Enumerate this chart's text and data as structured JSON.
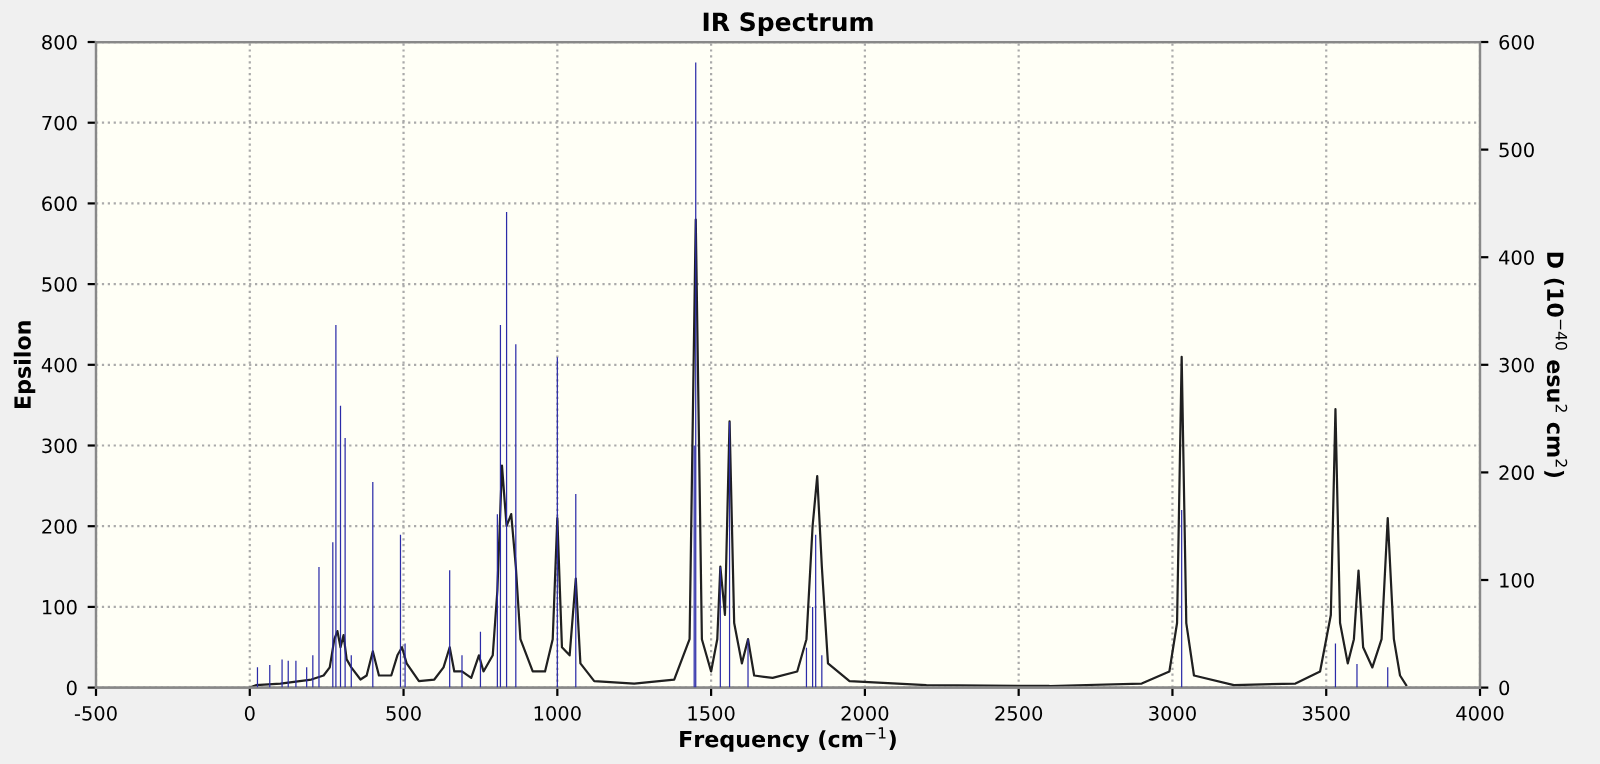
{
  "chart_data": {
    "type": "line",
    "title": "IR Spectrum",
    "xlabel": "Frequency (cm$^{−1}$)",
    "ylabel": "Epsilon",
    "y2label": "D (10$^{−40}$ esu$^{2}$ cm$^{2}$)",
    "xlim": [
      -500,
      4000
    ],
    "xticks": [
      -500,
      0,
      500,
      1000,
      1500,
      2000,
      2500,
      3000,
      3500,
      4000
    ],
    "ylim": [
      0,
      800
    ],
    "yticks": [
      0,
      100,
      200,
      300,
      400,
      500,
      600,
      700,
      800
    ],
    "y2lim": [
      0,
      600
    ],
    "y2ticks": [
      0,
      100,
      200,
      300,
      400,
      500,
      600
    ],
    "grid": true,
    "legend": false,
    "series": [
      {
        "color": "#202020",
        "x": [
          0,
          20,
          100,
          200,
          240,
          260,
          275,
          285,
          295,
          305,
          315,
          330,
          360,
          380,
          400,
          420,
          460,
          480,
          495,
          510,
          550,
          600,
          630,
          650,
          665,
          690,
          720,
          745,
          760,
          790,
          805,
          820,
          835,
          850,
          865,
          880,
          920,
          960,
          985,
          1000,
          1015,
          1040,
          1060,
          1075,
          1120,
          1250,
          1380,
          1430,
          1450,
          1470,
          1500,
          1520,
          1530,
          1545,
          1560,
          1575,
          1600,
          1620,
          1640,
          1700,
          1780,
          1810,
          1830,
          1845,
          1860,
          1880,
          1950,
          2200,
          2600,
          2900,
          2990,
          3015,
          3030,
          3045,
          3070,
          3200,
          3400,
          3480,
          3515,
          3530,
          3545,
          3570,
          3590,
          3605,
          3620,
          3650,
          3680,
          3700,
          3720,
          3740,
          3760
        ],
        "values": [
          0,
          3,
          5,
          10,
          15,
          25,
          60,
          70,
          50,
          65,
          35,
          25,
          10,
          15,
          45,
          15,
          15,
          40,
          50,
          30,
          8,
          10,
          25,
          50,
          20,
          20,
          12,
          40,
          20,
          40,
          120,
          275,
          200,
          215,
          150,
          60,
          20,
          20,
          60,
          210,
          50,
          40,
          135,
          30,
          8,
          5,
          10,
          60,
          580,
          60,
          20,
          60,
          150,
          90,
          330,
          80,
          30,
          60,
          15,
          12,
          20,
          60,
          200,
          262,
          150,
          30,
          8,
          3,
          2,
          5,
          20,
          80,
          410,
          80,
          15,
          3,
          5,
          20,
          90,
          345,
          80,
          30,
          60,
          145,
          50,
          25,
          60,
          210,
          60,
          15,
          3
        ]
      },
      {
        "type": "bar",
        "axis": "y2",
        "color": "#2b2ba8",
        "x": [
          25,
          65,
          105,
          125,
          150,
          185,
          205,
          225,
          270,
          280,
          295,
          310,
          330,
          400,
          490,
          505,
          650,
          690,
          750,
          805,
          815,
          835,
          865,
          1000,
          1060,
          1445,
          1450,
          1530,
          1560,
          1620,
          1810,
          1830,
          1840,
          1860,
          3030,
          3530,
          3600,
          3700
        ],
        "values": [
          19,
          21,
          26,
          25,
          25,
          19,
          30,
          112,
          135,
          337,
          262,
          232,
          30,
          191,
          142,
          41,
          109,
          30,
          52,
          161,
          337,
          442,
          319,
          307,
          180,
          225,
          581,
          112,
          247,
          45,
          37,
          75,
          142,
          30,
          165,
          41,
          22,
          19
        ]
      }
    ]
  }
}
